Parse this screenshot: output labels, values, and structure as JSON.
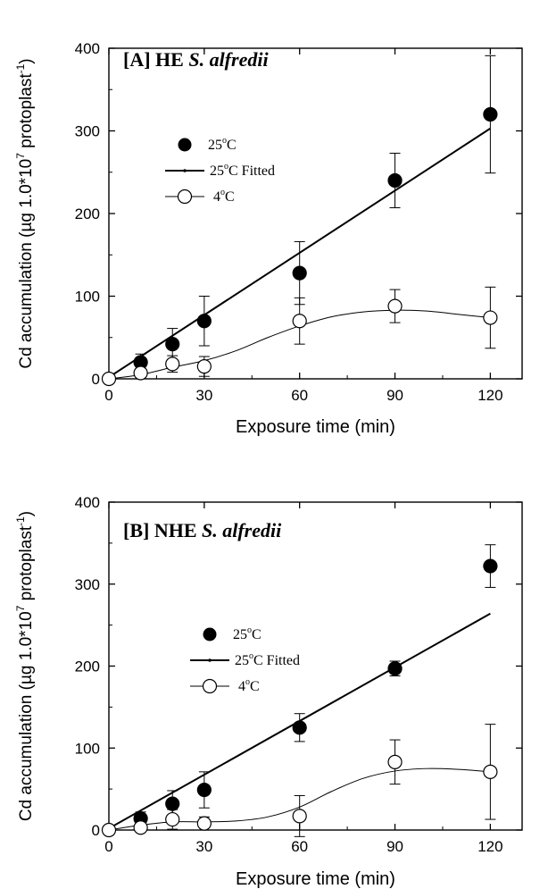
{
  "chart_data": [
    {
      "type": "scatter",
      "title_plain": "[A] HE ",
      "title_italic": "S. alfredii",
      "xlabel": "Exposure time (min)",
      "ylabel_pre": "Cd accumulation (µg 1.0*10",
      "ylabel_exp1": "7",
      "ylabel_mid": " protoplast",
      "ylabel_exp2": "-1",
      "ylabel_post": ")",
      "xlim": [
        0,
        130
      ],
      "ylim": [
        0,
        400
      ],
      "xticks": [
        0,
        30,
        60,
        90,
        120
      ],
      "yticks": [
        0,
        100,
        200,
        300,
        400
      ],
      "xtick_labels": [
        "0",
        "30",
        "60",
        "90",
        "120"
      ],
      "ytick_labels": [
        "0",
        "100",
        "200",
        "300",
        "400"
      ],
      "legend": [
        {
          "pre": "25",
          "sup": "o",
          "post": "C"
        },
        {
          "pre": "25",
          "sup": "o",
          "post": "C Fitted"
        },
        {
          "pre": "4",
          "sup": "o",
          "post": "C"
        }
      ],
      "series": [
        {
          "marker": "filled",
          "x": [
            10,
            20,
            30,
            60,
            90,
            120
          ],
          "y": [
            20,
            42,
            70,
            128,
            240,
            320
          ],
          "err": [
            10,
            19,
            30,
            38,
            33,
            71
          ]
        },
        {
          "marker": "open",
          "x": [
            0,
            10,
            20,
            30,
            60,
            90,
            120
          ],
          "y": [
            0,
            7,
            18,
            15,
            70,
            88,
            74
          ],
          "err": [
            0,
            5,
            10,
            12,
            28,
            20,
            37
          ]
        }
      ],
      "fit_line": {
        "x": [
          0,
          120
        ],
        "y": [
          2,
          303
        ]
      },
      "smooth_curve": {
        "x": [
          0,
          10,
          20,
          30,
          40,
          50,
          60,
          70,
          80,
          90,
          100,
          110,
          120
        ],
        "y": [
          0,
          5,
          14,
          22,
          34,
          50,
          64,
          75,
          81,
          83,
          82,
          78,
          74
        ]
      }
    },
    {
      "type": "scatter",
      "title_plain": "[B] NHE ",
      "title_italic": "S. alfredii",
      "xlabel": "Exposure time (min)",
      "ylabel_pre": "Cd accumulation (µg 1.0*10",
      "ylabel_exp1": "7",
      "ylabel_mid": " protoplast",
      "ylabel_exp2": "-1",
      "ylabel_post": ")",
      "xlim": [
        0,
        130
      ],
      "ylim": [
        0,
        400
      ],
      "xticks": [
        0,
        30,
        60,
        90,
        120
      ],
      "yticks": [
        0,
        100,
        200,
        300,
        400
      ],
      "xtick_labels": [
        "0",
        "30",
        "60",
        "90",
        "120"
      ],
      "ytick_labels": [
        "0",
        "100",
        "200",
        "300",
        "400"
      ],
      "legend": [
        {
          "pre": "25",
          "sup": "o",
          "post": "C"
        },
        {
          "pre": "25",
          "sup": "o",
          "post": "C Fitted"
        },
        {
          "pre": "4",
          "sup": "o",
          "post": "C"
        }
      ],
      "series": [
        {
          "marker": "filled",
          "x": [
            10,
            20,
            30,
            60,
            90,
            120
          ],
          "y": [
            14,
            32,
            49,
            125,
            197,
            322
          ],
          "err": [
            8,
            16,
            22,
            17,
            9,
            26
          ]
        },
        {
          "marker": "open",
          "x": [
            0,
            10,
            20,
            30,
            60,
            90,
            120
          ],
          "y": [
            0,
            3,
            13,
            8,
            17,
            83,
            71
          ],
          "err": [
            0,
            3,
            12,
            8,
            25,
            27,
            58
          ]
        }
      ],
      "fit_line": {
        "x": [
          0,
          120
        ],
        "y": [
          2,
          264
        ]
      },
      "smooth_curve": {
        "x": [
          0,
          10,
          20,
          30,
          40,
          50,
          60,
          70,
          80,
          90,
          100,
          110,
          120
        ],
        "y": [
          0,
          6,
          10,
          10,
          11,
          16,
          28,
          47,
          63,
          72,
          75,
          74,
          71
        ]
      }
    }
  ]
}
